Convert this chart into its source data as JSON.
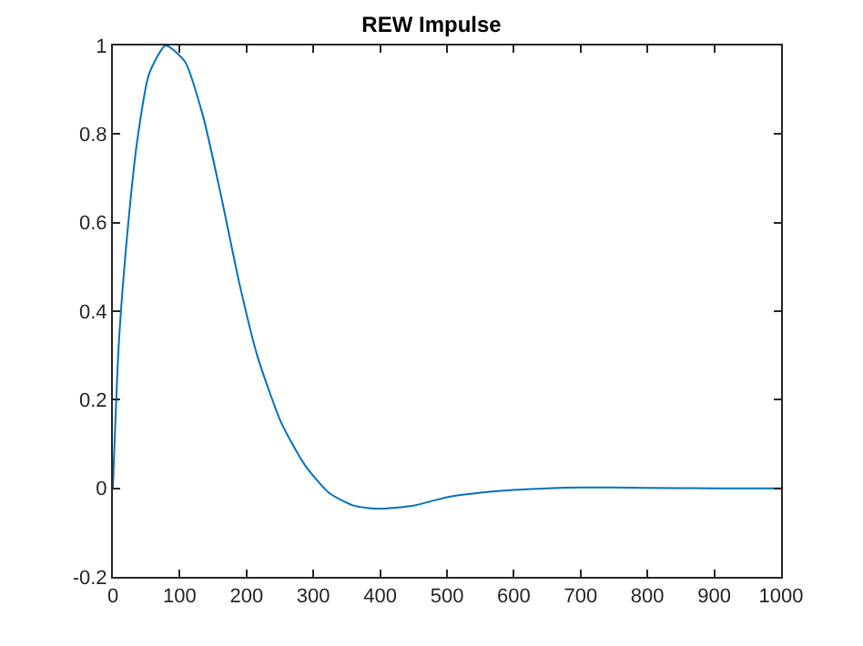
{
  "chart_data": {
    "type": "line",
    "title": "REW Impulse",
    "x": [
      0,
      9,
      22.5,
      36,
      54,
      79,
      108,
      135,
      162,
      189,
      216,
      252,
      288,
      324,
      360,
      396,
      450,
      500,
      550,
      600,
      650,
      700,
      800,
      900,
      1000
    ],
    "series": [
      {
        "color": "#0072bd",
        "values": [
          0,
          0.33,
          0.59,
          0.78,
          0.935,
          1.0,
          0.963,
          0.84,
          0.66,
          0.465,
          0.3,
          0.148,
          0.051,
          -0.011,
          -0.039,
          -0.046,
          -0.039,
          -0.02,
          -0.01,
          -0.004,
          0,
          0.002,
          0.001,
          0,
          0
        ]
      }
    ],
    "xlim": [
      0,
      1000
    ],
    "xticks": [
      0,
      100,
      200,
      300,
      400,
      500,
      600,
      700,
      800,
      900,
      1000
    ],
    "ylim": [
      -0.2,
      1
    ],
    "yticks": [
      -0.2,
      0,
      0.2,
      0.4,
      0.6,
      0.8,
      1
    ],
    "marker": "none",
    "line_style": "solid"
  }
}
